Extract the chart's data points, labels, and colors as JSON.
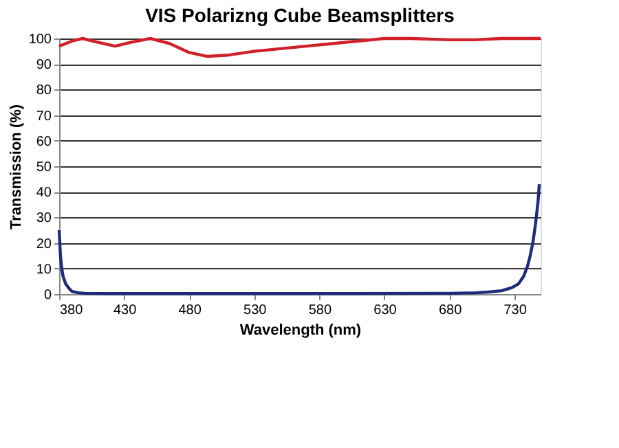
{
  "chart_data": {
    "type": "line",
    "title": "VIS Polarizng Cube Beamsplitters",
    "xlabel": "Wavelength (nm)",
    "ylabel": "Transmission (%)",
    "series": [
      {
        "color": "#d0202a",
        "x": [
          380,
          390,
          398,
          410,
          423,
          435,
          450,
          465,
          480,
          494,
          510,
          530,
          550,
          570,
          590,
          610,
          630,
          650,
          680,
          700,
          720,
          750
        ],
        "values": [
          97,
          99,
          100,
          98.5,
          97,
          98.5,
          100,
          98,
          94.5,
          93,
          93.5,
          95,
          96,
          97,
          98,
          99,
          100,
          100,
          99.5,
          99.5,
          100,
          100
        ]
      },
      {
        "color": "#1f2a7a",
        "x": [
          380,
          381,
          382,
          383,
          385,
          388,
          390,
          395,
          400,
          420,
          500,
          600,
          680,
          700,
          710,
          720,
          728,
          733,
          737,
          740,
          742,
          744,
          746,
          748,
          749
        ],
        "values": [
          25,
          15,
          10,
          7,
          4,
          2,
          1,
          0.5,
          0.3,
          0.2,
          0.2,
          0.2,
          0.3,
          0.5,
          0.8,
          1.3,
          2.5,
          4,
          7,
          11,
          15,
          20,
          27,
          36,
          43
        ]
      }
    ],
    "xlim": [
      380,
      750
    ],
    "xticks": [
      380,
      430,
      480,
      530,
      580,
      630,
      680,
      730
    ],
    "ylim": [
      0,
      100
    ],
    "yticks": [
      0,
      10,
      20,
      30,
      40,
      50,
      60,
      70,
      80,
      90,
      100
    ],
    "grid": "y",
    "legend": false,
    "marker": "none",
    "line_style": "solid"
  }
}
